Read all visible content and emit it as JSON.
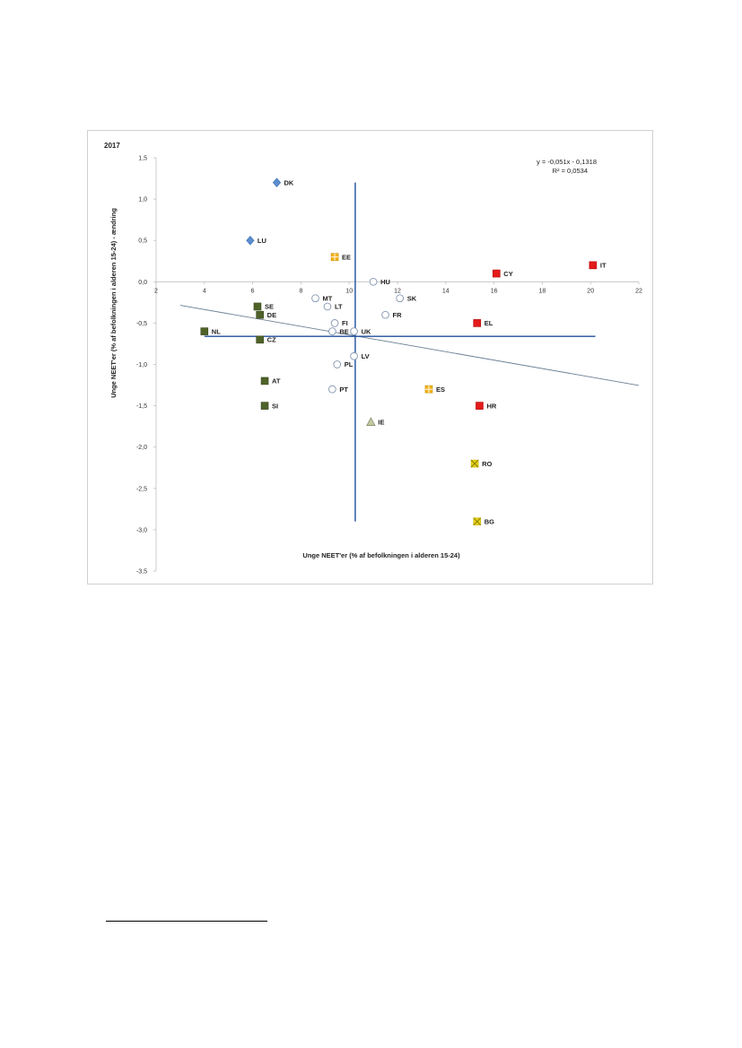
{
  "chart_data": {
    "type": "scatter",
    "title": "2017",
    "xlabel": "Unge NEET'er (% af befolkningen i alderen 15-24)",
    "ylabel": "Unge NEET'er (% af befolkningen i alderen 15-24) - ændring",
    "xlim": [
      2,
      22
    ],
    "ylim": [
      -3.5,
      1.5
    ],
    "x_ticks": [
      2,
      4,
      6,
      8,
      10,
      12,
      14,
      16,
      18,
      20,
      22
    ],
    "x_tick_labels": [
      "2",
      "4",
      "6",
      "8",
      "10",
      "12",
      "14",
      "16",
      "18",
      "20",
      "22"
    ],
    "y_ticks": [
      1.5,
      1.0,
      0.5,
      0.0,
      -0.5,
      -1.0,
      -1.5,
      -2.0,
      -2.5,
      -3.0,
      -3.5
    ],
    "y_tick_labels": [
      "1,5",
      "1,0",
      "0,5",
      "0,0",
      "-0,5",
      "-1,0",
      "-1,5",
      "-2,0",
      "-2,5",
      "-3,0",
      "-3,5"
    ],
    "regression": {
      "equation": "y = -0,051x - 0,1318",
      "r_squared": "R² = 0,0534",
      "slope": -0.051,
      "intercept": -0.1318,
      "x_range": [
        3,
        22
      ],
      "color": "#6a7f94"
    },
    "reference_lines": {
      "vertical_x": 10.25,
      "vertical_y_range": [
        -2.9,
        1.2
      ],
      "horizontal_y": -0.66,
      "horizontal_x_range": [
        4,
        20.2
      ],
      "color": "#1f4e9c"
    },
    "categories": {
      "blue_diamond": {
        "shape": "diamond",
        "fill": "#5b8fd0",
        "stroke": "#3a6aab"
      },
      "green_square": {
        "shape": "square",
        "fill": "#4f6228",
        "stroke": "#3b4a1e"
      },
      "white_circle": {
        "shape": "circle",
        "fill": "#ffffff",
        "stroke": "#8496b0"
      },
      "orange_plus": {
        "shape": "square-plus",
        "fill": "#f2b31b",
        "stroke": "#c98f00"
      },
      "red_square": {
        "shape": "square",
        "fill": "#e31b1b",
        "stroke": "#b30000"
      },
      "olive_triangle": {
        "shape": "triangle",
        "fill": "#c3c9a2",
        "stroke": "#7d8560"
      },
      "yellow_x": {
        "shape": "square-x",
        "fill": "#e6d21a",
        "stroke": "#8a7d00"
      }
    },
    "points": [
      {
        "label": "DK",
        "x": 7.0,
        "y": 1.2,
        "cat": "blue_diamond"
      },
      {
        "label": "LU",
        "x": 5.9,
        "y": 0.5,
        "cat": "blue_diamond"
      },
      {
        "label": "EE",
        "x": 9.4,
        "y": 0.3,
        "cat": "orange_plus"
      },
      {
        "label": "HU",
        "x": 11.0,
        "y": 0.0,
        "cat": "white_circle"
      },
      {
        "label": "IT",
        "x": 20.1,
        "y": 0.2,
        "cat": "red_square"
      },
      {
        "label": "CY",
        "x": 16.1,
        "y": 0.1,
        "cat": "red_square"
      },
      {
        "label": "MT",
        "x": 8.6,
        "y": -0.2,
        "cat": "white_circle"
      },
      {
        "label": "SK",
        "x": 12.1,
        "y": -0.2,
        "cat": "white_circle"
      },
      {
        "label": "LT",
        "x": 9.1,
        "y": -0.3,
        "cat": "white_circle"
      },
      {
        "label": "SE",
        "x": 6.2,
        "y": -0.3,
        "cat": "green_square"
      },
      {
        "label": "DE",
        "x": 6.3,
        "y": -0.4,
        "cat": "green_square"
      },
      {
        "label": "FR",
        "x": 11.5,
        "y": -0.4,
        "cat": "white_circle"
      },
      {
        "label": "FI",
        "x": 9.4,
        "y": -0.5,
        "cat": "white_circle"
      },
      {
        "label": "EL",
        "x": 15.3,
        "y": -0.5,
        "cat": "red_square"
      },
      {
        "label": "NL",
        "x": 4.0,
        "y": -0.6,
        "cat": "green_square"
      },
      {
        "label": "BE",
        "x": 9.3,
        "y": -0.6,
        "cat": "white_circle"
      },
      {
        "label": "UK",
        "x": 10.2,
        "y": -0.6,
        "cat": "white_circle"
      },
      {
        "label": "CZ",
        "x": 6.3,
        "y": -0.7,
        "cat": "green_square"
      },
      {
        "label": "LV",
        "x": 10.2,
        "y": -0.9,
        "cat": "white_circle"
      },
      {
        "label": "PL",
        "x": 9.5,
        "y": -1.0,
        "cat": "white_circle"
      },
      {
        "label": "AT",
        "x": 6.5,
        "y": -1.2,
        "cat": "green_square"
      },
      {
        "label": "PT",
        "x": 9.3,
        "y": -1.3,
        "cat": "white_circle"
      },
      {
        "label": "ES",
        "x": 13.3,
        "y": -1.3,
        "cat": "orange_plus"
      },
      {
        "label": "SI",
        "x": 6.5,
        "y": -1.5,
        "cat": "green_square"
      },
      {
        "label": "HR",
        "x": 15.4,
        "y": -1.5,
        "cat": "red_square"
      },
      {
        "label": "IE",
        "x": 10.9,
        "y": -1.7,
        "cat": "olive_triangle"
      },
      {
        "label": "RO",
        "x": 15.2,
        "y": -2.2,
        "cat": "yellow_x"
      },
      {
        "label": "BG",
        "x": 15.3,
        "y": -2.9,
        "cat": "yellow_x"
      }
    ]
  }
}
